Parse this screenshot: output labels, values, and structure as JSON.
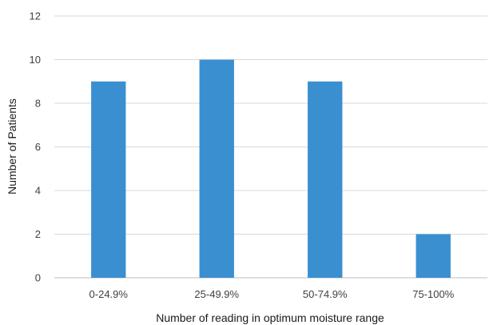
{
  "chart_data": {
    "type": "bar",
    "title": "",
    "xlabel": "Number of reading in optimum moisture range",
    "ylabel": "Number of Patients",
    "categories": [
      "0-24.9%",
      "25-49.9%",
      "50-74.9%",
      "75-100%"
    ],
    "values": [
      9,
      10,
      9,
      2
    ],
    "ylim": [
      0,
      12
    ],
    "yticks": [
      "0",
      "2",
      "4",
      "6",
      "8",
      "10",
      "12"
    ],
    "grid": true,
    "legend": "none",
    "bar_color": "#3a8fd1"
  }
}
